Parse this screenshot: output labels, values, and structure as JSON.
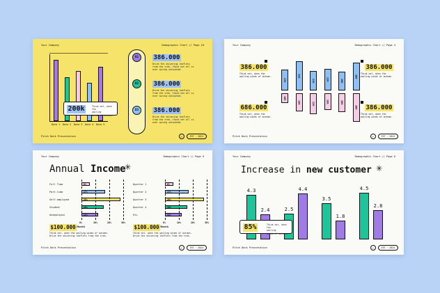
{
  "slide1": {
    "company": "Your Company",
    "header_right": "Demographic Chart // Page 10",
    "footer": "Pitch Deck Presentation",
    "nav_left": "←",
    "nav_pill": "EST · 2024",
    "bar_values": [
      5.6,
      4,
      4.6,
      3.5,
      5
    ],
    "bar_colors": [
      "#a07be6",
      "#1ec49a",
      "#f5cde6",
      "#8ec0f5",
      "#a07be6"
    ],
    "categories": [
      "Data 1",
      "Data 2",
      "Data 3",
      "Data 4",
      "Data 5"
    ],
    "callout_value": "200k",
    "callout_text": "Think not, when the\nwailing\nwinds of autumn.",
    "items": [
      {
        "badge": "01",
        "value": "386.000",
        "text": "Drive the shivering leaflets\nfrom the tree, think not all is\never spring untouched."
      },
      {
        "badge": "02",
        "value": "386.000",
        "text": "Drive the shivering leaflets\nfrom the tree, think not all is\never spring untouched."
      },
      {
        "badge": "03",
        "value": "386.000",
        "text": "Drive the shivering leaflets\nfrom the tree, think not all is\never spring untouched."
      }
    ]
  },
  "slide2": {
    "company": "Your Company",
    "header_right": "Demographic Chart // Page 4",
    "footer": "Pitch Deck Presentation",
    "nav_left": "←",
    "nav_pill": "EST · 2024",
    "tl_value": "386.000",
    "tl_text": "Think not, when the\nwailing winds of autumn.",
    "tr_value": "386.000",
    "tr_text": "Think not, when the\nwailing winds of autumn.",
    "bl_value": "686.000",
    "bl_text": "Think not, when the\nwailing winds of autumn.",
    "br_value": "386.000",
    "br_text": "Think not, when the\nwailing winds of autumn.",
    "top_bars": [
      {
        "label": "22K",
        "value": 22,
        "color": "#8ec0f5"
      },
      {
        "label": "31K",
        "value": 31,
        "color": "#8ec0f5"
      },
      {
        "label": "21K",
        "value": 21,
        "color": "#8ec0f5"
      },
      {
        "label": "23K",
        "value": 23,
        "color": "#8ec0f5"
      },
      {
        "label": "20K",
        "value": 20,
        "color": "#8ec0f5"
      },
      {
        "label": "30K",
        "value": 30,
        "color": "#8ec0f5"
      }
    ],
    "bottom_bars": [
      {
        "label": "10K",
        "value": 10,
        "color": "#f5cde6"
      },
      {
        "label": "19K",
        "value": 19,
        "color": "#f5cde6"
      },
      {
        "label": "22K",
        "value": 22,
        "color": "#f5cde6"
      },
      {
        "label": "18K",
        "value": 18,
        "color": "#f5cde6"
      },
      {
        "label": "20K",
        "value": 20,
        "color": "#f5cde6"
      },
      {
        "label": "30K",
        "value": 30,
        "color": "#f5cde6"
      }
    ]
  },
  "slide3": {
    "company": "Your Company",
    "header_right": "Demographic Chart // Page 9",
    "footer": "Pitch Deck Presentation",
    "nav_left": "←",
    "nav_pill": "EST · 2024",
    "title_regular": "Annual ",
    "title_bold": "Income",
    "star": "✳",
    "left_rows": [
      {
        "label": "Full Time",
        "value": 6,
        "text": "6%",
        "color": "#f5cde6"
      },
      {
        "label": "Part-time",
        "value": 17,
        "text": "17%",
        "color": "#8ec0f5"
      },
      {
        "label": "Self-employed",
        "value": 28,
        "text": "28%",
        "color": "#f6e46a"
      },
      {
        "label": "Student",
        "value": 16,
        "text": "16%",
        "color": "#1ec49a"
      },
      {
        "label": "Unemployed",
        "value": 12,
        "text": "12%",
        "color": "#a07be6"
      }
    ],
    "right_rows": [
      {
        "label": "Quarter 1",
        "value": 6,
        "text": "6%",
        "color": "#f5cde6"
      },
      {
        "label": "Quarter 2",
        "value": 17,
        "text": "17%",
        "color": "#8ec0f5"
      },
      {
        "label": "Quarter 3",
        "value": 28,
        "text": "28%",
        "color": "#f6e46a"
      },
      {
        "label": "Quarter 4",
        "value": 16,
        "text": "16%",
        "color": "#1ec49a"
      },
      {
        "label": "Etc",
        "value": 12,
        "text": "12%",
        "color": "#a07be6"
      }
    ],
    "ticks": [
      "0%",
      "10%",
      "20%",
      "30%"
    ],
    "left_value": "$100.000",
    "left_unit": "/Month",
    "left_text": "Think not, when the wailing winds of autumn.\nDrive the shivering leaflets from the tree.",
    "right_value": "$100.000",
    "right_unit": "/Month",
    "right_text": "Think not, when the wailing winds of autumn.\nDrive the shivering leaflets from the tree."
  },
  "slide4": {
    "company": "Your Company",
    "header_right": "Demographic Chart // Page 6",
    "footer": "Pitch Deck Presentation",
    "nav_left": "←",
    "nav_pill": "EST · 2024",
    "title_regular": "Increase in ",
    "title_bold": "new customer",
    "star": "✳",
    "callout_value": "85%",
    "callout_text": "Think not, when the\nwailing\nwinds of autumn.",
    "pairs": [
      {
        "a": 4.3,
        "b": 2.4
      },
      {
        "a": 2.5,
        "b": 4.4
      },
      {
        "a": 3.5,
        "b": 1.8
      },
      {
        "a": 4.5,
        "b": 2.8
      }
    ],
    "color_a": "#1ec49a",
    "color_b": "#a07be6"
  }
}
